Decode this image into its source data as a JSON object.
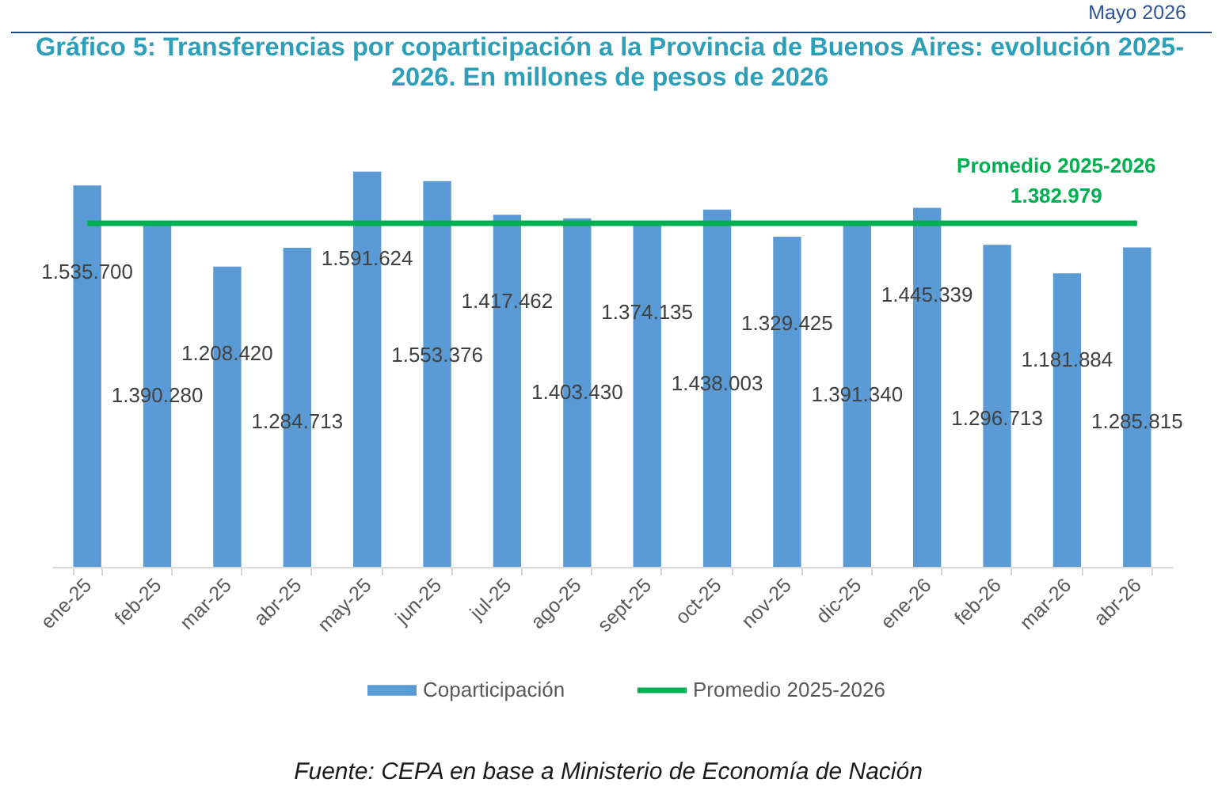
{
  "chart_data": {
    "type": "bar",
    "title": "Gráfico 5: Transferencias por coparticipación a la Provincia de Buenos Aires: evolución 2025-2026. En millones de pesos de 2026",
    "annotations": [
      "Mayo 2026",
      "Fuente: CEPA en base a Ministerio de Economía de Nación"
    ],
    "categories": [
      "ene-25",
      "feb-25",
      "mar-25",
      "abr-25",
      "may-25",
      "jun-25",
      "jul-25",
      "ago-25",
      "sept-25",
      "oct-25",
      "nov-25",
      "dic-25",
      "ene-26",
      "feb-26",
      "mar-26",
      "abr-26"
    ],
    "series": [
      {
        "name": "Coparticipación",
        "type": "bar",
        "color": "#5b9bd5",
        "values": [
          1535700,
          1390280,
          1208420,
          1284713,
          1591624,
          1553376,
          1417462,
          1403430,
          1374135,
          1438003,
          1329425,
          1391340,
          1445339,
          1296713,
          1181884,
          1285815
        ],
        "value_labels": [
          "1.535.700",
          "1.390.280",
          "1.208.420",
          "1.284.713",
          "1.591.624",
          "1.553.376",
          "1.417.462",
          "1.403.430",
          "1.374.135",
          "1.438.003",
          "1.329.425",
          "1.391.340",
          "1.445.339",
          "1.296.713",
          "1.181.884",
          "1.285.815"
        ]
      },
      {
        "name": "Promedio 2025-2026",
        "type": "line",
        "color": "#00b050",
        "values": [
          1382979,
          1382979,
          1382979,
          1382979,
          1382979,
          1382979,
          1382979,
          1382979,
          1382979,
          1382979,
          1382979,
          1382979,
          1382979,
          1382979,
          1382979,
          1382979
        ],
        "value_labels": [
          null,
          null,
          null,
          null,
          null,
          null,
          null,
          null,
          null,
          null,
          null,
          null,
          null,
          null,
          null,
          "1.382.979"
        ]
      }
    ],
    "tick_labels": "x",
    "legend": "bottom"
  }
}
